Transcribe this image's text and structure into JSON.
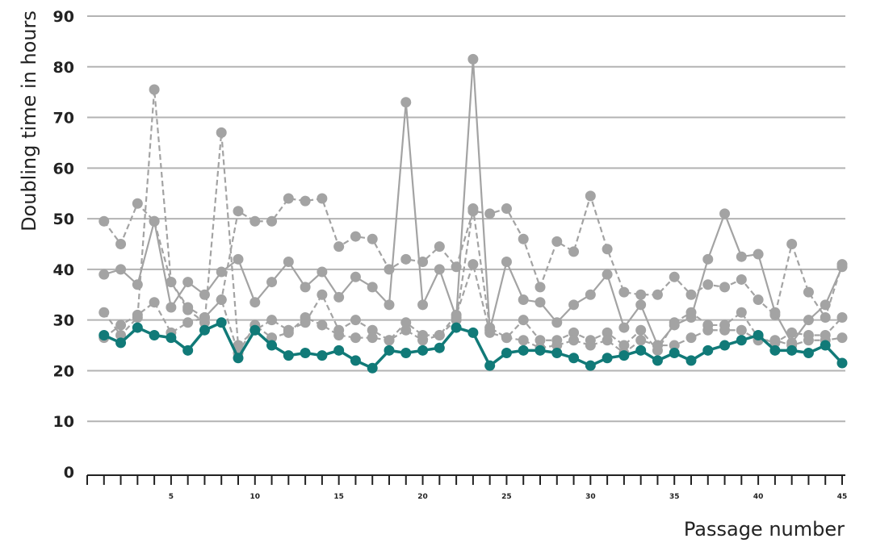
{
  "chart_data": {
    "type": "line",
    "xlabel": "Passage number",
    "ylabel": "Doubling time in hours",
    "ylim": [
      0,
      90
    ],
    "yticks": [
      "0",
      "10",
      "20",
      "30",
      "40",
      "50",
      "60",
      "70",
      "80",
      "90"
    ],
    "xlim": [
      0,
      45
    ],
    "xticks": [
      "5",
      "10",
      "15",
      "20",
      "25",
      "30",
      "35",
      "40",
      "45"
    ],
    "grid": true,
    "colors": {
      "gray": "#a3a3a3",
      "teal": "#117a78",
      "axis": "#222222",
      "grid": "#b3b3b3"
    },
    "series": [
      {
        "style": "dashed",
        "color": "#a3a3a3",
        "x": [
          1,
          2,
          3,
          4,
          5,
          6,
          7,
          8,
          9,
          10,
          11,
          12,
          13,
          14,
          15,
          16,
          17,
          18,
          19,
          20,
          21,
          22,
          23,
          24,
          25,
          26,
          27,
          28,
          29,
          30,
          31,
          32,
          33,
          34,
          35,
          36,
          37,
          38,
          39,
          40,
          41,
          42,
          43,
          44,
          45
        ],
        "values": [
          49.5,
          45,
          53,
          49.5,
          37.5,
          32.5,
          30.5,
          34,
          51.5,
          49.5,
          49.5,
          54,
          53.5,
          54,
          44.5,
          46.5,
          46,
          40,
          42,
          41.5,
          44.5,
          40.5,
          51.5,
          51,
          52,
          46,
          36.5,
          45.5,
          43.5,
          54.5,
          44,
          35.5,
          35,
          35,
          38.5,
          35,
          37,
          36.5,
          38,
          34,
          31,
          45,
          35.5,
          30.5,
          41
        ]
      },
      {
        "style": "solid",
        "color": "#a3a3a3",
        "x": [
          1,
          2,
          3,
          4,
          5,
          6,
          7,
          8,
          9,
          10,
          11,
          12,
          13,
          14,
          15,
          16,
          17,
          18,
          19,
          20,
          21,
          22,
          23,
          24,
          25,
          26,
          27,
          28,
          29,
          30,
          31,
          32,
          33,
          34,
          35,
          36,
          37,
          38,
          39,
          40,
          41,
          42,
          43,
          44,
          45
        ],
        "values": [
          39,
          40,
          37,
          49.5,
          32.5,
          37.5,
          35,
          39.5,
          42,
          33.5,
          37.5,
          41.5,
          36.5,
          39.5,
          34.5,
          38.5,
          36.5,
          33,
          73,
          33,
          40,
          30.5,
          81.5,
          28,
          41.5,
          34,
          33.5,
          29.5,
          33,
          35,
          39,
          28.5,
          33,
          25,
          29,
          30.5,
          42,
          51,
          42.5,
          43,
          31.5,
          25.5,
          30,
          33,
          40.5
        ]
      },
      {
        "style": "dashed",
        "color": "#a3a3a3",
        "x": [
          1,
          2,
          3,
          4,
          5,
          6,
          7,
          8,
          9,
          10,
          11,
          12,
          13,
          14,
          15,
          16,
          17,
          18,
          19,
          20,
          21,
          22,
          23,
          24,
          25,
          26,
          27,
          28,
          29,
          30,
          31,
          32,
          33,
          34,
          35,
          36,
          37,
          38,
          39,
          40,
          41,
          42,
          43,
          44,
          45
        ],
        "values": [
          31.5,
          27,
          30.5,
          75.5,
          37.5,
          32,
          29.5,
          67,
          25,
          28,
          30,
          28,
          29.5,
          35,
          28,
          30,
          28,
          26,
          29.5,
          27,
          27,
          31,
          41,
          27.5,
          26.5,
          30,
          26,
          26,
          27.5,
          26,
          27.5,
          25,
          28,
          24,
          29.5,
          31.5,
          29,
          29,
          31.5,
          26.5,
          25.5,
          27.5,
          27,
          27,
          30.5
        ]
      },
      {
        "style": "dashed",
        "color": "#a3a3a3",
        "x": [
          1,
          2,
          3,
          4,
          5,
          6,
          7,
          8,
          9,
          10,
          11,
          12,
          13,
          14,
          15,
          16,
          17,
          18,
          19,
          20,
          21,
          22,
          23,
          24,
          25,
          26,
          27,
          28,
          29,
          30,
          31,
          32,
          33,
          34,
          35,
          36,
          37,
          38,
          39,
          40,
          41,
          42,
          43,
          44,
          45
        ],
        "values": [
          26.5,
          29,
          31,
          33.5,
          27.5,
          29.5,
          30.5,
          34,
          23.5,
          29,
          26.5,
          27.5,
          30.5,
          29,
          27,
          26.5,
          26.5,
          26,
          28,
          26,
          27,
          30,
          52,
          28.5,
          26.5,
          26,
          24.5,
          25,
          26,
          25,
          26,
          23.5,
          26,
          25,
          25,
          26.5,
          28,
          28,
          28,
          26,
          26,
          25,
          26,
          26,
          26.5
        ]
      },
      {
        "style": "solid",
        "color": "#117a78",
        "x": [
          1,
          2,
          3,
          4,
          5,
          6,
          7,
          8,
          9,
          10,
          11,
          12,
          13,
          14,
          15,
          16,
          17,
          18,
          19,
          20,
          21,
          22,
          23,
          24,
          25,
          26,
          27,
          28,
          29,
          30,
          31,
          32,
          33,
          34,
          35,
          36,
          37,
          38,
          39,
          40,
          41,
          42,
          43,
          44,
          45
        ],
        "values": [
          27,
          25.5,
          28.5,
          27,
          26.5,
          24,
          28,
          29.5,
          22.5,
          28,
          25,
          23,
          23.5,
          23,
          24,
          22,
          20.5,
          24,
          23.5,
          24,
          24.5,
          28.5,
          27.5,
          21,
          23.5,
          24,
          24,
          23.5,
          22.5,
          21,
          22.5,
          23,
          24,
          22,
          23.5,
          22,
          24,
          25,
          26,
          27,
          24,
          24,
          23.5,
          25,
          21.5
        ]
      }
    ]
  }
}
